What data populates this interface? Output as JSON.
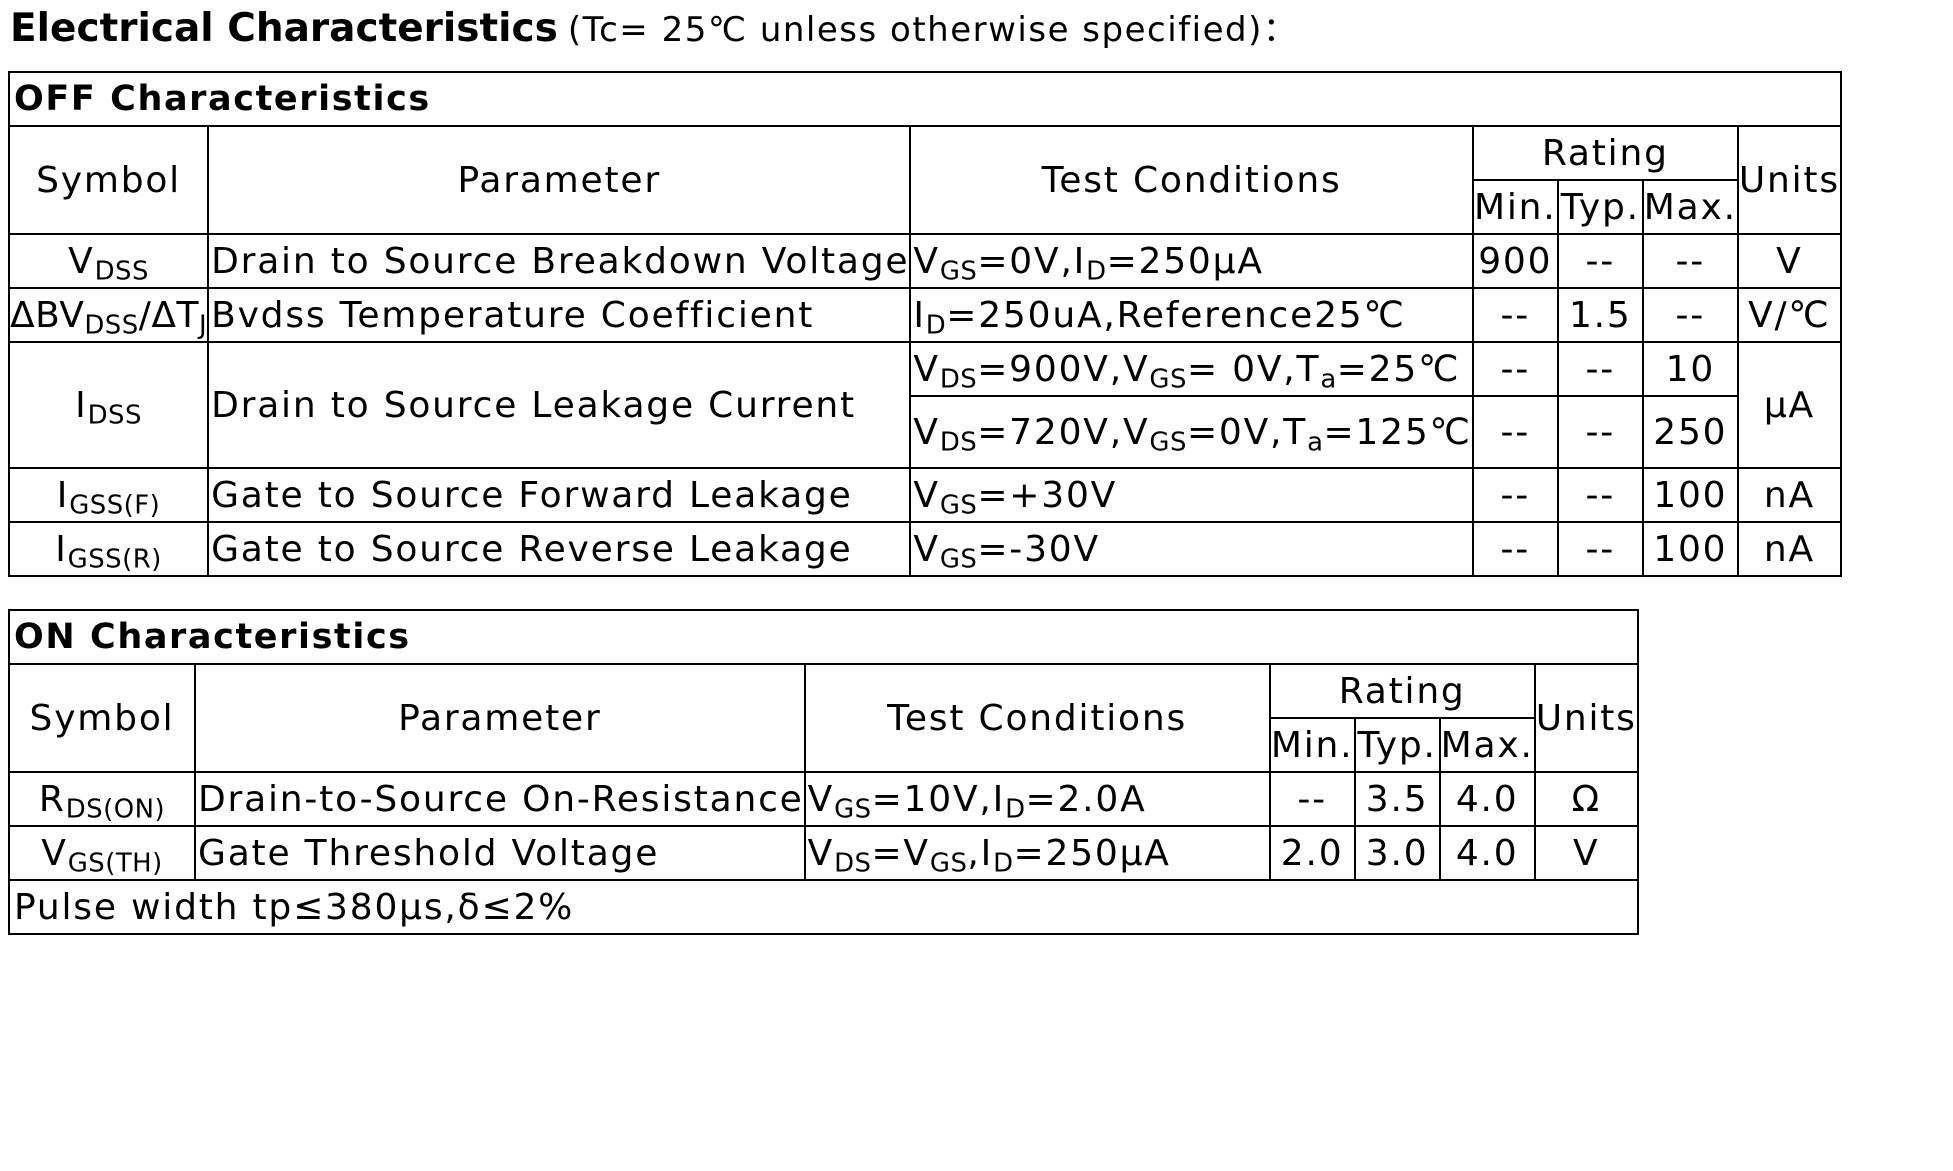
{
  "heading": {
    "title": "Electrical Characteristics",
    "condition": "(Tc= 25℃  unless otherwise specified)："
  },
  "columns": {
    "symbol": "Symbol",
    "parameter": "Parameter",
    "test_conditions": "Test Conditions",
    "rating": "Rating",
    "min": "Min.",
    "typ": "Typ.",
    "max": "Max.",
    "units": "Units"
  },
  "off": {
    "title": "OFF Characteristics",
    "rows": [
      {
        "sym_main": "V",
        "sym_sub": "DSS",
        "parameter": "Drain to Source Breakdown Voltage",
        "cond": [
          {
            "m": "V"
          },
          {
            "s": "GS"
          },
          {
            "m": "=0V,I"
          },
          {
            "s": "D"
          },
          {
            "m": "=250μA"
          }
        ],
        "min": "900",
        "typ": "--",
        "max": "--",
        "unit": "V"
      },
      {
        "sym_pre": "ΔBV",
        "sym_sub": "DSS",
        "sym_mid": "/ΔT",
        "sym_sub2": "J",
        "parameter": "Bvdss Temperature Coefficient",
        "cond": [
          {
            "m": "I"
          },
          {
            "s": "D"
          },
          {
            "m": "=250uA,Reference25℃"
          }
        ],
        "min": "--",
        "typ": "1.5",
        "max": "--",
        "unit": "V/℃"
      },
      {
        "sym_main": "I",
        "sym_sub": "DSS",
        "parameter": "Drain to Source Leakage Current",
        "cond_a": [
          {
            "m": "V"
          },
          {
            "s": "DS"
          },
          {
            "m": "=900V,V"
          },
          {
            "s": "GS"
          },
          {
            "m": "= 0V,T"
          },
          {
            "s": "a"
          },
          {
            "m": "=25℃"
          }
        ],
        "min_a": "--",
        "typ_a": "--",
        "max_a": "10",
        "cond_b": [
          {
            "m": "V"
          },
          {
            "s": "DS"
          },
          {
            "m": "=720V,V"
          },
          {
            "s": "GS"
          },
          {
            "m": "=0V,T"
          },
          {
            "s": "a"
          },
          {
            "m": "=125℃"
          }
        ],
        "min_b": "--",
        "typ_b": "--",
        "max_b": "250",
        "unit": "μA"
      },
      {
        "sym_main": "I",
        "sym_sub": "GSS(F)",
        "parameter": "Gate to Source Forward Leakage",
        "cond": [
          {
            "m": "V"
          },
          {
            "s": "GS"
          },
          {
            "m": "=+30V"
          }
        ],
        "min": "--",
        "typ": "--",
        "max": "100",
        "unit": "nA"
      },
      {
        "sym_main": "I",
        "sym_sub": "GSS(R)",
        "parameter": "Gate to Source Reverse Leakage",
        "cond": [
          {
            "m": "V"
          },
          {
            "s": "GS"
          },
          {
            "m": "=-30V"
          }
        ],
        "min": "--",
        "typ": "--",
        "max": "100",
        "unit": "nA"
      }
    ]
  },
  "on": {
    "title": "ON Characteristics",
    "rows": [
      {
        "sym_main": "R",
        "sym_sub": "DS(ON)",
        "parameter": "Drain-to-Source On-Resistance",
        "cond": [
          {
            "m": "V"
          },
          {
            "s": "GS"
          },
          {
            "m": "=10V,I"
          },
          {
            "s": "D"
          },
          {
            "m": "=2.0A"
          }
        ],
        "min": "--",
        "typ": "3.5",
        "max": "4.0",
        "unit": "Ω"
      },
      {
        "sym_main": "V",
        "sym_sub": "GS(TH)",
        "parameter": "Gate Threshold Voltage",
        "cond": [
          {
            "m": "V"
          },
          {
            "s": "DS"
          },
          {
            "m": "=V"
          },
          {
            "s": "GS"
          },
          {
            "m": ",I"
          },
          {
            "s": "D"
          },
          {
            "m": "=250μA"
          }
        ],
        "min": "2.0",
        "typ": "3.0",
        "max": "4.0",
        "unit": "V"
      }
    ],
    "note": "Pulse width tp≤380μs,δ≤2%"
  }
}
